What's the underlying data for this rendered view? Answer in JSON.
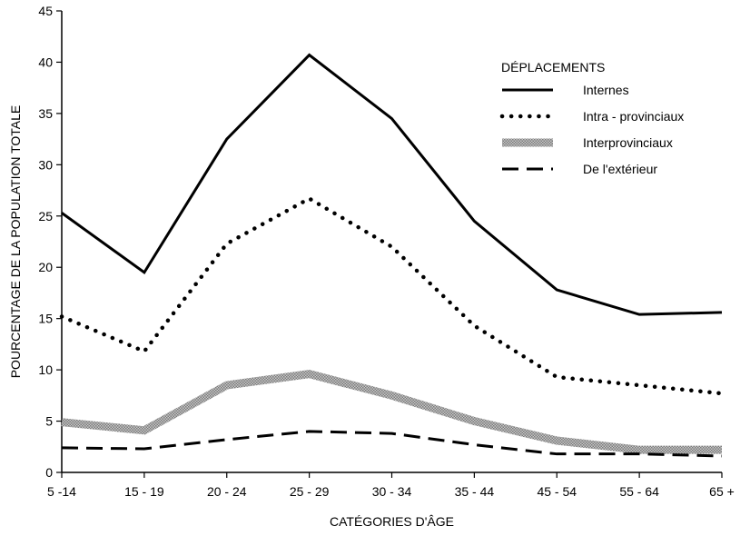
{
  "chart_data": {
    "type": "line",
    "xlabel": "CATÉGORIES D'ÂGE",
    "ylabel": "POURCENTAGE DE LA POPULATION TOTALE",
    "ylim": [
      0,
      45
    ],
    "yticks": [
      0,
      5,
      10,
      15,
      20,
      25,
      30,
      35,
      40,
      45
    ],
    "categories": [
      "5 -14",
      "15 - 19",
      "20 - 24",
      "25 - 29",
      "30 - 34",
      "35 - 44",
      "45 - 54",
      "55 - 64",
      "65 +"
    ],
    "legend": {
      "title": "DÉPLACEMENTS",
      "position": "top-right"
    },
    "grid": false,
    "series": [
      {
        "name": "Internes",
        "style": "solid",
        "color": "#000000",
        "values": [
          25.3,
          19.5,
          32.5,
          40.7,
          34.5,
          24.5,
          17.8,
          15.4,
          15.6
        ]
      },
      {
        "name": "Intra - provinciaux",
        "style": "dotted",
        "color": "#000000",
        "values": [
          15.2,
          11.8,
          22.3,
          26.7,
          22.0,
          14.3,
          9.3,
          8.5,
          7.7
        ]
      },
      {
        "name": "Interprovinciaux",
        "style": "band",
        "color": "#9a9a9a",
        "values": [
          4.9,
          4.1,
          8.5,
          9.6,
          7.5,
          5.0,
          3.1,
          2.2,
          2.2
        ]
      },
      {
        "name": "De l'extérieur",
        "style": "dashed",
        "color": "#000000",
        "values": [
          2.4,
          2.3,
          3.2,
          4.0,
          3.8,
          2.7,
          1.8,
          1.8,
          1.6
        ]
      }
    ]
  }
}
